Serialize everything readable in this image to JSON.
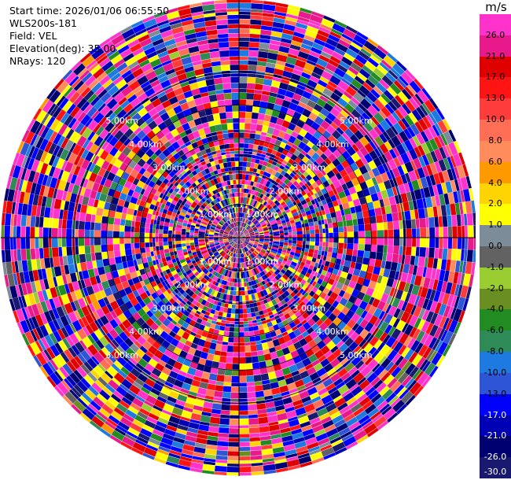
{
  "header": {
    "start_time": "Start time: 2026/01/06 06:55:50",
    "site": "WLS200s-181",
    "field": "Field: VEL",
    "elevation": "Elevation(deg): 35.00",
    "nrays": "NRays: 120"
  },
  "colorbar": {
    "unit": "m/s",
    "ticks": [
      "26.0",
      "21.0",
      "17.0",
      "13.0",
      "10.0",
      "8.0",
      "6.0",
      "4.0",
      "2.0",
      "1.0",
      "0.0",
      "-1.0",
      "-2.0",
      "-4.0",
      "-6.0",
      "-8.0",
      "-10.0",
      "-13.0",
      "-17.0",
      "-21.0",
      "-26.0",
      "-30.0"
    ],
    "colors": [
      "#ff33cc",
      "#e8198a",
      "#e00000",
      "#ff1414",
      "#ff3c3c",
      "#ff6e55",
      "#ff8c5a",
      "#ff9900",
      "#ffd400",
      "#ffff00",
      "#7c8c99",
      "#626262",
      "#9acd32",
      "#6b8e23",
      "#228b22",
      "#2e8b57",
      "#1c7ae0",
      "#2e55d6",
      "#0000ff",
      "#0000b4",
      "#000070",
      "#191970"
    ]
  },
  "chart_data": {
    "type": "heatmap",
    "projection": "polar-ppi",
    "field": "VEL",
    "units": "m/s",
    "nrays": 120,
    "range_rings_km": [
      1.0,
      2.0,
      3.0,
      4.0,
      5.0
    ],
    "range_labels": {
      "r1": "1.00km",
      "r2": "2.00km",
      "r3": "3.00km",
      "r4": "4.00km",
      "r5": "5.00km"
    },
    "max_range_km": 7.2
  }
}
